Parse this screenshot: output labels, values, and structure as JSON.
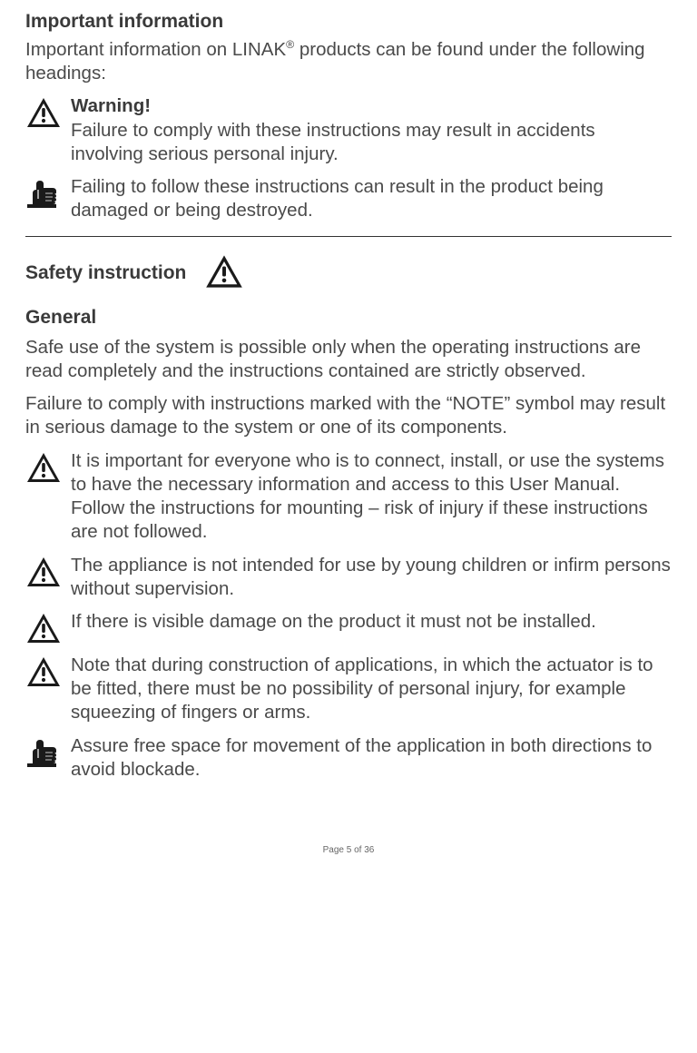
{
  "heading_important": "Important information",
  "intro_html": "Important information on LINAK<sup>®</sup> products can be found under the following headings:",
  "warning_title": "Warning!",
  "warning_body": "Failure to comply with these instructions may result in accidents involving serious personal injury.",
  "note_body": "Failing to follow these instructions can result in the product being damaged or being destroyed.",
  "safety_heading": "Safety instruction",
  "general_heading": "General",
  "general_p1": "Safe use of the system is possible only when the operating instructions are read completely and the instructions contained are strictly observed.",
  "general_p2": "Failure to comply with instructions marked with the “NOTE” symbol may result in serious damage to the system or one of its components.",
  "bullets": [
    "It is important for everyone who is to connect, install, or use the systems to have the necessary information and access to this User Manual. Follow the instructions for mounting – risk of injury if these instructions are not followed.",
    "The appliance is not intended for use by young children or infirm persons without supervision.",
    "If there is visible damage on the product it must not be installed.",
    "Note that during construction of applications, in which the actuator is to be fitted, there must be no possibility of personal injury, for example squeezing of fingers or arms.",
    "Assure free space for movement of the application in both directions to avoid blockade."
  ],
  "footer": "Page 5 of 36",
  "colors": {
    "text": "#4a4a4a",
    "heading": "#3a3a3a",
    "bg": "#ffffff",
    "icon": "#1a1a1a"
  }
}
